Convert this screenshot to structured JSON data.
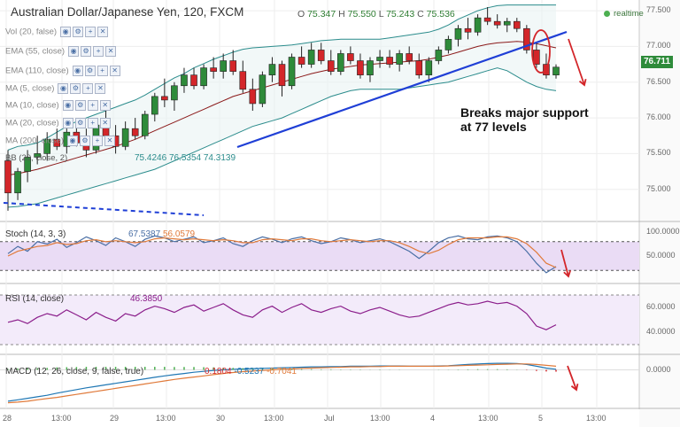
{
  "header": {
    "title": "Australian Dollar/Japanese Yen, 120, FXCM",
    "ohlc_labels": [
      "O",
      "H",
      "L",
      "C"
    ],
    "ohlc_values": [
      "75.347",
      "75.550",
      "75.243",
      "75.536"
    ],
    "status": "realtime",
    "last_price": "76.711"
  },
  "indicators": [
    {
      "label": "Vol (20, false)"
    },
    {
      "label": "EMA (55, close)"
    },
    {
      "label": "EMA (110, close)"
    },
    {
      "label": "MA (5, close)"
    },
    {
      "label": "MA (10, close)"
    },
    {
      "label": "MA (20, close)"
    },
    {
      "label": "MA (200, close)"
    }
  ],
  "bb_label": "BB (20, close, 2)",
  "bb_values": [
    "75.4246",
    "76.5354",
    "74.3139"
  ],
  "stoch": {
    "label": "Stoch (14, 3, 3)",
    "k": "67.5387",
    "d": "56.0579"
  },
  "rsi": {
    "label": "RSI (14, close)",
    "value": "46.3850"
  },
  "macd": {
    "label": "MACD (12, 26, close, 9, false, true)",
    "values": [
      "0.1804",
      "-0.5237",
      "-0.7041"
    ]
  },
  "annotation": "Breaks major support at 77 levels",
  "colors": {
    "bull": "#2e8b3a",
    "bear": "#d3262a",
    "bb_band": "#2b8c8c",
    "bb_mid": "#8b1a1a",
    "trendline": "#1f3fd6",
    "stoch_k": "#4a6fa5",
    "stoch_d": "#e07a3a",
    "rsi": "#8b1e8b",
    "pane_fill": "#eadcf5",
    "arrow": "#d3262a"
  },
  "chart_data": [
    {
      "type": "candlestick",
      "title": "Australian Dollar/Japanese Yen, 120, FXCM",
      "ylim": [
        74.6,
        77.6
      ],
      "y_ticks": [
        "77.500",
        "77.000",
        "76.500",
        "76.000",
        "75.500",
        "75.000"
      ],
      "x_ticks": [
        "28",
        "13:00",
        "29",
        "13:00",
        "30",
        "13:00",
        "Jul",
        "13:00",
        "4",
        "13:00",
        "5",
        "13:00"
      ],
      "ohlc": [
        [
          75.4,
          75.55,
          74.7,
          74.95
        ],
        [
          74.95,
          75.3,
          74.85,
          75.25
        ],
        [
          75.25,
          75.55,
          75.1,
          75.45
        ],
        [
          75.45,
          75.75,
          75.35,
          75.5
        ],
        [
          75.5,
          75.8,
          75.4,
          75.7
        ],
        [
          75.7,
          75.85,
          75.55,
          75.6
        ],
        [
          75.6,
          75.9,
          75.5,
          75.8
        ],
        [
          75.8,
          75.95,
          75.6,
          75.65
        ],
        [
          75.65,
          75.85,
          75.45,
          75.55
        ],
        [
          75.55,
          76.0,
          75.5,
          75.9
        ],
        [
          75.9,
          76.1,
          75.7,
          75.75
        ],
        [
          75.75,
          75.9,
          75.5,
          75.6
        ],
        [
          75.6,
          75.95,
          75.55,
          75.85
        ],
        [
          75.85,
          76.0,
          75.7,
          75.75
        ],
        [
          75.75,
          76.1,
          75.7,
          76.05
        ],
        [
          76.05,
          76.35,
          75.95,
          76.3
        ],
        [
          76.3,
          76.55,
          76.15,
          76.25
        ],
        [
          76.25,
          76.5,
          76.1,
          76.45
        ],
        [
          76.45,
          76.7,
          76.35,
          76.6
        ],
        [
          76.6,
          76.7,
          76.4,
          76.45
        ],
        [
          76.45,
          76.75,
          76.4,
          76.7
        ],
        [
          76.7,
          76.85,
          76.55,
          76.65
        ],
        [
          76.65,
          76.9,
          76.55,
          76.8
        ],
        [
          76.8,
          76.95,
          76.6,
          76.65
        ],
        [
          76.65,
          76.8,
          76.35,
          76.4
        ],
        [
          76.4,
          76.55,
          76.1,
          76.2
        ],
        [
          76.2,
          76.65,
          76.15,
          76.6
        ],
        [
          76.6,
          76.85,
          76.5,
          76.75
        ],
        [
          76.75,
          76.8,
          76.3,
          76.45
        ],
        [
          76.45,
          76.9,
          76.4,
          76.85
        ],
        [
          76.85,
          77.0,
          76.7,
          76.75
        ],
        [
          76.75,
          77.05,
          76.7,
          76.95
        ],
        [
          76.95,
          77.05,
          76.75,
          76.8
        ],
        [
          76.8,
          76.95,
          76.6,
          76.65
        ],
        [
          76.65,
          76.95,
          76.6,
          76.9
        ],
        [
          76.9,
          77.0,
          76.75,
          76.8
        ],
        [
          76.8,
          76.9,
          76.55,
          76.6
        ],
        [
          76.6,
          76.85,
          76.5,
          76.8
        ],
        [
          76.8,
          76.95,
          76.7,
          76.85
        ],
        [
          76.85,
          76.95,
          76.7,
          76.75
        ],
        [
          76.75,
          76.95,
          76.65,
          76.9
        ],
        [
          76.9,
          77.0,
          76.75,
          76.8
        ],
        [
          76.8,
          76.9,
          76.55,
          76.6
        ],
        [
          76.6,
          76.85,
          76.5,
          76.8
        ],
        [
          76.8,
          77.0,
          76.75,
          76.95
        ],
        [
          76.95,
          77.15,
          76.9,
          77.1
        ],
        [
          77.1,
          77.3,
          77.0,
          77.25
        ],
        [
          77.25,
          77.4,
          77.1,
          77.2
        ],
        [
          77.2,
          77.45,
          77.15,
          77.4
        ],
        [
          77.4,
          77.55,
          77.3,
          77.35
        ],
        [
          77.35,
          77.45,
          77.25,
          77.3
        ],
        [
          77.3,
          77.4,
          77.2,
          77.35
        ],
        [
          77.35,
          77.4,
          77.2,
          77.25
        ],
        [
          77.25,
          77.3,
          76.9,
          76.95
        ],
        [
          76.95,
          77.05,
          76.7,
          76.75
        ],
        [
          76.75,
          76.9,
          76.55,
          76.6
        ],
        [
          76.6,
          76.75,
          76.55,
          76.71
        ]
      ],
      "bollinger": {
        "upper": [
          75.55,
          75.6,
          75.62,
          75.65,
          75.72,
          75.8,
          75.88,
          75.95,
          76.0,
          76.05,
          76.1,
          76.15,
          76.2,
          76.25,
          76.32,
          76.4,
          76.48,
          76.56,
          76.62,
          76.7,
          76.76,
          76.82,
          76.87,
          76.92,
          76.96,
          76.98,
          76.99,
          77.0,
          77.01,
          77.02,
          77.04,
          77.06,
          77.08,
          77.09,
          77.1,
          77.1,
          77.1,
          77.1,
          77.1,
          77.12,
          77.14,
          77.16,
          77.18,
          77.2,
          77.24,
          77.3,
          77.38,
          77.44,
          77.5,
          77.54,
          77.57,
          77.58,
          77.58,
          77.58,
          77.58,
          77.58,
          77.58
        ],
        "middle": [
          75.2,
          75.22,
          75.25,
          75.28,
          75.32,
          75.36,
          75.4,
          75.44,
          75.48,
          75.52,
          75.56,
          75.6,
          75.65,
          75.7,
          75.76,
          75.82,
          75.88,
          75.94,
          76.0,
          76.06,
          76.12,
          76.18,
          76.24,
          76.3,
          76.34,
          76.38,
          76.42,
          76.46,
          76.5,
          76.54,
          76.58,
          76.62,
          76.65,
          76.68,
          76.7,
          76.72,
          76.74,
          76.75,
          76.76,
          76.77,
          76.78,
          76.79,
          76.8,
          76.82,
          76.85,
          76.88,
          76.92,
          76.96,
          77.0,
          77.03,
          77.05,
          77.06,
          77.07,
          77.06,
          77.04,
          77.01,
          76.98
        ],
        "lower": [
          74.75,
          74.76,
          74.78,
          74.8,
          74.84,
          74.88,
          74.92,
          74.96,
          75.0,
          75.04,
          75.08,
          75.12,
          75.16,
          75.2,
          75.24,
          75.28,
          75.34,
          75.4,
          75.46,
          75.52,
          75.58,
          75.64,
          75.7,
          75.76,
          75.82,
          75.88,
          75.92,
          75.96,
          76.0,
          76.06,
          76.12,
          76.18,
          76.24,
          76.3,
          76.34,
          76.38,
          76.4,
          76.4,
          76.4,
          76.4,
          76.4,
          76.42,
          76.44,
          76.46,
          76.48,
          76.5,
          76.54,
          76.58,
          76.62,
          76.66,
          76.7,
          76.66,
          76.58,
          76.5,
          76.44,
          76.4,
          76.38
        ]
      }
    },
    {
      "type": "line",
      "title": "Stoch (14, 3, 3)",
      "ylim": [
        0,
        100
      ],
      "y_ticks": [
        "100.0000",
        "50.0000"
      ],
      "series": [
        {
          "name": "%K",
          "values": [
            55,
            70,
            60,
            80,
            75,
            85,
            68,
            78,
            90,
            82,
            72,
            88,
            80,
            70,
            85,
            92,
            88,
            80,
            85,
            90,
            78,
            82,
            88,
            76,
            70,
            82,
            90,
            85,
            78,
            86,
            90,
            82,
            76,
            80,
            88,
            84,
            78,
            82,
            86,
            80,
            70,
            60,
            45,
            60,
            78,
            88,
            92,
            86,
            84,
            90,
            92,
            88,
            80,
            60,
            35,
            15,
            28
          ]
        },
        {
          "name": "%D",
          "values": [
            50,
            60,
            65,
            70,
            72,
            78,
            74,
            76,
            82,
            84,
            80,
            82,
            80,
            78,
            80,
            86,
            88,
            86,
            84,
            86,
            84,
            82,
            84,
            82,
            78,
            78,
            84,
            86,
            84,
            82,
            86,
            86,
            82,
            80,
            82,
            84,
            82,
            80,
            82,
            82,
            78,
            70,
            60,
            55,
            62,
            74,
            84,
            88,
            88,
            88,
            90,
            90,
            86,
            76,
            58,
            35,
            26
          ]
        }
      ]
    },
    {
      "type": "line",
      "title": "RSI (14, close)",
      "ylim": [
        25,
        75
      ],
      "y_ticks": [
        "60.0000",
        "40.0000"
      ],
      "series": [
        {
          "name": "RSI",
          "values": [
            48,
            50,
            47,
            52,
            55,
            53,
            58,
            54,
            50,
            56,
            52,
            49,
            55,
            53,
            58,
            61,
            59,
            56,
            60,
            62,
            57,
            60,
            63,
            58,
            54,
            52,
            58,
            61,
            56,
            60,
            63,
            58,
            56,
            59,
            61,
            57,
            55,
            58,
            60,
            57,
            54,
            52,
            53,
            56,
            59,
            62,
            64,
            62,
            63,
            65,
            63,
            64,
            61,
            55,
            45,
            42,
            46
          ]
        }
      ]
    },
    {
      "type": "line",
      "title": "MACD (12, 26, close, 9, false, true)",
      "ylim": [
        -1.2,
        0.4
      ],
      "y_ticks": [
        "0.0000"
      ],
      "series": [
        {
          "name": "MACD",
          "values": [
            -1.05,
            -1.0,
            -0.95,
            -0.9,
            -0.85,
            -0.78,
            -0.72,
            -0.66,
            -0.6,
            -0.55,
            -0.5,
            -0.45,
            -0.4,
            -0.35,
            -0.3,
            -0.25,
            -0.2,
            -0.16,
            -0.12,
            -0.08,
            -0.05,
            -0.02,
            0.0,
            0.02,
            0.03,
            0.04,
            0.05,
            0.06,
            0.07,
            0.08,
            0.09,
            0.1,
            0.1,
            0.11,
            0.11,
            0.12,
            0.12,
            0.12,
            0.13,
            0.13,
            0.13,
            0.12,
            0.12,
            0.12,
            0.13,
            0.14,
            0.16,
            0.18,
            0.2,
            0.21,
            0.22,
            0.22,
            0.21,
            0.18,
            0.12,
            0.06,
            0.02
          ]
        },
        {
          "name": "Signal",
          "values": [
            -1.1,
            -1.08,
            -1.05,
            -1.0,
            -0.96,
            -0.92,
            -0.87,
            -0.82,
            -0.77,
            -0.72,
            -0.67,
            -0.62,
            -0.57,
            -0.52,
            -0.47,
            -0.42,
            -0.37,
            -0.32,
            -0.28,
            -0.24,
            -0.2,
            -0.16,
            -0.12,
            -0.09,
            -0.06,
            -0.04,
            -0.02,
            0.0,
            0.02,
            0.03,
            0.05,
            0.06,
            0.07,
            0.08,
            0.09,
            0.1,
            0.1,
            0.11,
            0.11,
            0.12,
            0.12,
            0.12,
            0.12,
            0.12,
            0.12,
            0.13,
            0.14,
            0.15,
            0.16,
            0.17,
            0.18,
            0.19,
            0.2,
            0.2,
            0.18,
            0.15,
            0.12
          ]
        }
      ]
    }
  ]
}
